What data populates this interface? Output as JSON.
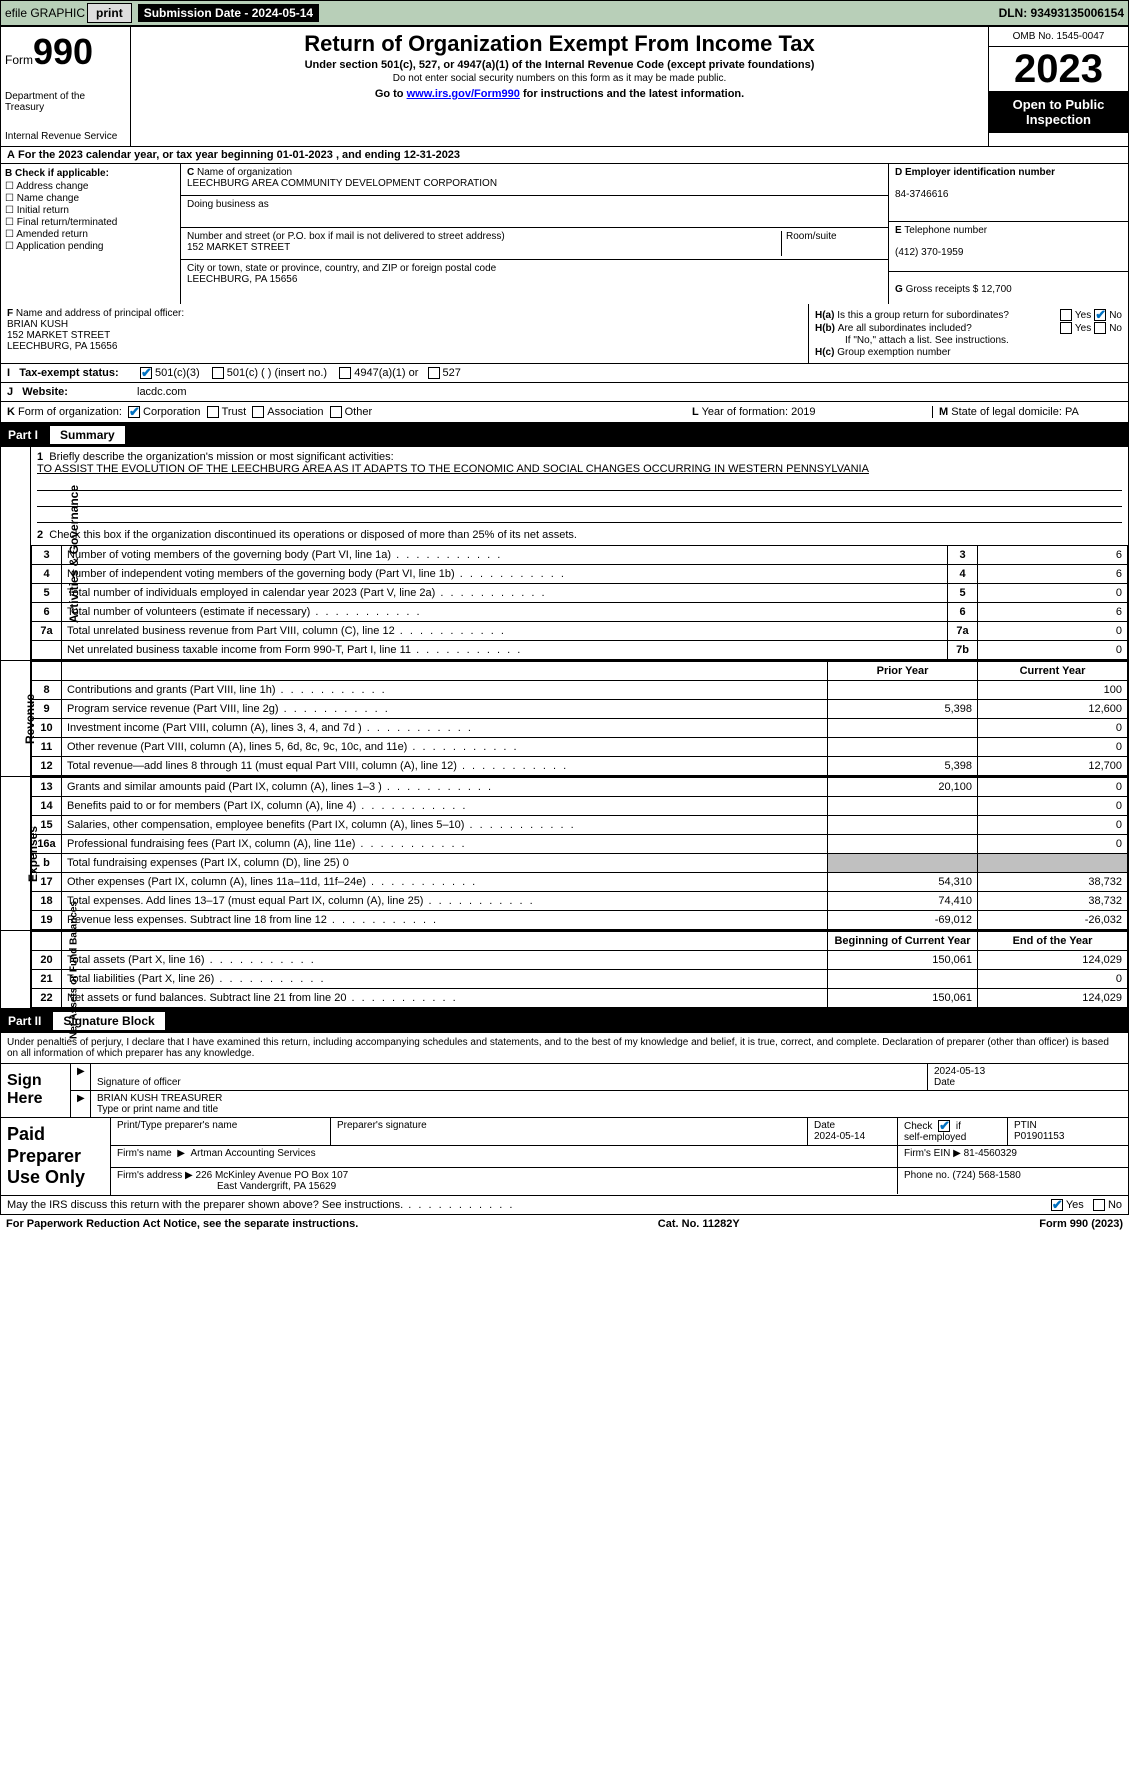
{
  "topbar": {
    "efile": "efile GRAPHIC",
    "print": "print",
    "subdate_lbl": "Submission Date - 2024-05-14",
    "dln": "DLN: 93493135006154"
  },
  "header": {
    "form_word": "Form",
    "form_num": "990",
    "dept": "Department of the Treasury",
    "irs": "Internal Revenue Service",
    "title": "Return of Organization Exempt From Income Tax",
    "sub1": "Under section 501(c), 527, or 4947(a)(1) of the Internal Revenue Code (except private foundations)",
    "sub2": "Do not enter social security numbers on this form as it may be made public.",
    "sub3_pre": "Go to ",
    "sub3_link": "www.irs.gov/Form990",
    "sub3_post": " for instructions and the latest information.",
    "omb": "OMB No. 1545-0047",
    "year": "2023",
    "open": "Open to Public Inspection"
  },
  "rowA": "For the 2023 calendar year, or tax year beginning 01-01-2023    , and ending 12-31-2023",
  "boxB": {
    "label": "Check if applicable:",
    "opts": [
      "Address change",
      "Name change",
      "Initial return",
      "Final return/terminated",
      "Amended return",
      "Application pending"
    ]
  },
  "boxC": {
    "name_lbl": "Name of organization",
    "name": "LEECHBURG AREA COMMUNITY DEVELOPMENT CORPORATION",
    "dba_lbl": "Doing business as",
    "addr_lbl": "Number and street (or P.O. box if mail is not delivered to street address)",
    "room_lbl": "Room/suite",
    "addr": "152 MARKET STREET",
    "city_lbl": "City or town, state or province, country, and ZIP or foreign postal code",
    "city": "LEECHBURG, PA  15656"
  },
  "boxD": {
    "lbl": "Employer identification number",
    "val": "84-3746616"
  },
  "boxE": {
    "lbl": "Telephone number",
    "val": "(412) 370-1959"
  },
  "boxG": {
    "lbl": "Gross receipts $",
    "val": "12,700"
  },
  "boxF": {
    "lbl": "Name and address of principal officer:",
    "name": "BRIAN KUSH",
    "addr1": "152 MARKET STREET",
    "addr2": "LEECHBURG, PA  15656"
  },
  "boxH": {
    "ha": "Is this a group return for subordinates?",
    "hb": "Are all subordinates included?",
    "hb_note": "If \"No,\" attach a list. See instructions.",
    "hc": "Group exemption number",
    "yes": "Yes",
    "no": "No"
  },
  "rowI": {
    "lbl": "Tax-exempt status:",
    "o1": "501(c)(3)",
    "o2": "501(c) (  ) (insert no.)",
    "o3": "4947(a)(1) or",
    "o4": "527"
  },
  "rowJ": {
    "lbl": "Website:",
    "val": "lacdc.com"
  },
  "rowK": {
    "lbl": "Form of organization:",
    "o1": "Corporation",
    "o2": "Trust",
    "o3": "Association",
    "o4": "Other"
  },
  "rowL": {
    "lbl": "Year of formation: 2019"
  },
  "rowM": {
    "lbl": "State of legal domicile: PA"
  },
  "part1": {
    "num": "Part I",
    "title": "Summary"
  },
  "line1": {
    "lbl": "Briefly describe the organization's mission or most significant activities:",
    "val": "TO ASSIST THE EVOLUTION OF THE LEECHBURG AREA AS IT ADAPTS TO THE ECONOMIC AND SOCIAL CHANGES OCCURRING IN WESTERN PENNSYLVANIA"
  },
  "line2": "Check this box      if the organization discontinued its operations or disposed of more than 25% of its net assets.",
  "gov_label": "Activities & Governance",
  "rev_label": "Revenue",
  "exp_label": "Expenses",
  "nab_label": "Net Assets or Fund Balances",
  "gov_rows": [
    {
      "n": "3",
      "d": "Number of voting members of the governing body (Part VI, line 1a)",
      "k": "3",
      "v": "6"
    },
    {
      "n": "4",
      "d": "Number of independent voting members of the governing body (Part VI, line 1b)",
      "k": "4",
      "v": "6"
    },
    {
      "n": "5",
      "d": "Total number of individuals employed in calendar year 2023 (Part V, line 2a)",
      "k": "5",
      "v": "0"
    },
    {
      "n": "6",
      "d": "Total number of volunteers (estimate if necessary)",
      "k": "6",
      "v": "6"
    },
    {
      "n": "7a",
      "d": "Total unrelated business revenue from Part VIII, column (C), line 12",
      "k": "7a",
      "v": "0"
    },
    {
      "n": "",
      "d": "Net unrelated business taxable income from Form 990-T, Part I, line 11",
      "k": "7b",
      "v": "0"
    }
  ],
  "col_hdrs": {
    "prior": "Prior Year",
    "current": "Current Year",
    "beg": "Beginning of Current Year",
    "end": "End of the Year"
  },
  "rev_rows": [
    {
      "n": "8",
      "d": "Contributions and grants (Part VIII, line 1h)",
      "p": "",
      "c": "100"
    },
    {
      "n": "9",
      "d": "Program service revenue (Part VIII, line 2g)",
      "p": "5,398",
      "c": "12,600"
    },
    {
      "n": "10",
      "d": "Investment income (Part VIII, column (A), lines 3, 4, and 7d )",
      "p": "",
      "c": "0"
    },
    {
      "n": "11",
      "d": "Other revenue (Part VIII, column (A), lines 5, 6d, 8c, 9c, 10c, and 11e)",
      "p": "",
      "c": "0"
    },
    {
      "n": "12",
      "d": "Total revenue—add lines 8 through 11 (must equal Part VIII, column (A), line 12)",
      "p": "5,398",
      "c": "12,700"
    }
  ],
  "exp_rows": [
    {
      "n": "13",
      "d": "Grants and similar amounts paid (Part IX, column (A), lines 1–3 )",
      "p": "20,100",
      "c": "0"
    },
    {
      "n": "14",
      "d": "Benefits paid to or for members (Part IX, column (A), line 4)",
      "p": "",
      "c": "0"
    },
    {
      "n": "15",
      "d": "Salaries, other compensation, employee benefits (Part IX, column (A), lines 5–10)",
      "p": "",
      "c": "0"
    },
    {
      "n": "16a",
      "d": "Professional fundraising fees (Part IX, column (A), line 11e)",
      "p": "",
      "c": "0"
    },
    {
      "n": "b",
      "d": "Total fundraising expenses (Part IX, column (D), line 25) 0",
      "shade": true
    },
    {
      "n": "17",
      "d": "Other expenses (Part IX, column (A), lines 11a–11d, 11f–24e)",
      "p": "54,310",
      "c": "38,732"
    },
    {
      "n": "18",
      "d": "Total expenses. Add lines 13–17 (must equal Part IX, column (A), line 25)",
      "p": "74,410",
      "c": "38,732"
    },
    {
      "n": "19",
      "d": "Revenue less expenses. Subtract line 18 from line 12",
      "p": "-69,012",
      "c": "-26,032"
    }
  ],
  "nab_rows": [
    {
      "n": "20",
      "d": "Total assets (Part X, line 16)",
      "p": "150,061",
      "c": "124,029"
    },
    {
      "n": "21",
      "d": "Total liabilities (Part X, line 26)",
      "p": "",
      "c": "0"
    },
    {
      "n": "22",
      "d": "Net assets or fund balances. Subtract line 21 from line 20",
      "p": "150,061",
      "c": "124,029"
    }
  ],
  "part2": {
    "num": "Part II",
    "title": "Signature Block"
  },
  "sig_decl": "Under penalties of perjury, I declare that I have examined this return, including accompanying schedules and statements, and to the best of my knowledge and belief, it is true, correct, and complete. Declaration of preparer (other than officer) is based on all information of which preparer has any knowledge.",
  "sign": {
    "here": "Sign Here",
    "sig_lbl": "Signature of officer",
    "date_lbl": "Date",
    "date": "2024-05-13",
    "name": "BRIAN KUSH  TREASURER",
    "name_lbl": "Type or print name and title"
  },
  "paid": {
    "lbl": "Paid Preparer Use Only",
    "h_name": "Print/Type preparer's name",
    "h_sig": "Preparer's signature",
    "h_date": "Date",
    "date": "2024-05-14",
    "h_check": "Check       if self-employed",
    "h_ptin": "PTIN",
    "ptin": "P01901153",
    "firm_lbl": "Firm's name",
    "firm": "Artman Accounting Services",
    "ein_lbl": "Firm's EIN",
    "ein": "81-4560329",
    "addr_lbl": "Firm's address",
    "addr1": "226 McKinley Avenue PO Box 107",
    "addr2": "East Vandergrift, PA  15629",
    "phone_lbl": "Phone no.",
    "phone": "(724) 568-1580"
  },
  "discuss": "May the IRS discuss this return with the preparer shown above? See instructions.",
  "footer": {
    "l": "For Paperwork Reduction Act Notice, see the separate instructions.",
    "c": "Cat. No. 11282Y",
    "r": "Form 990 (2023)"
  }
}
